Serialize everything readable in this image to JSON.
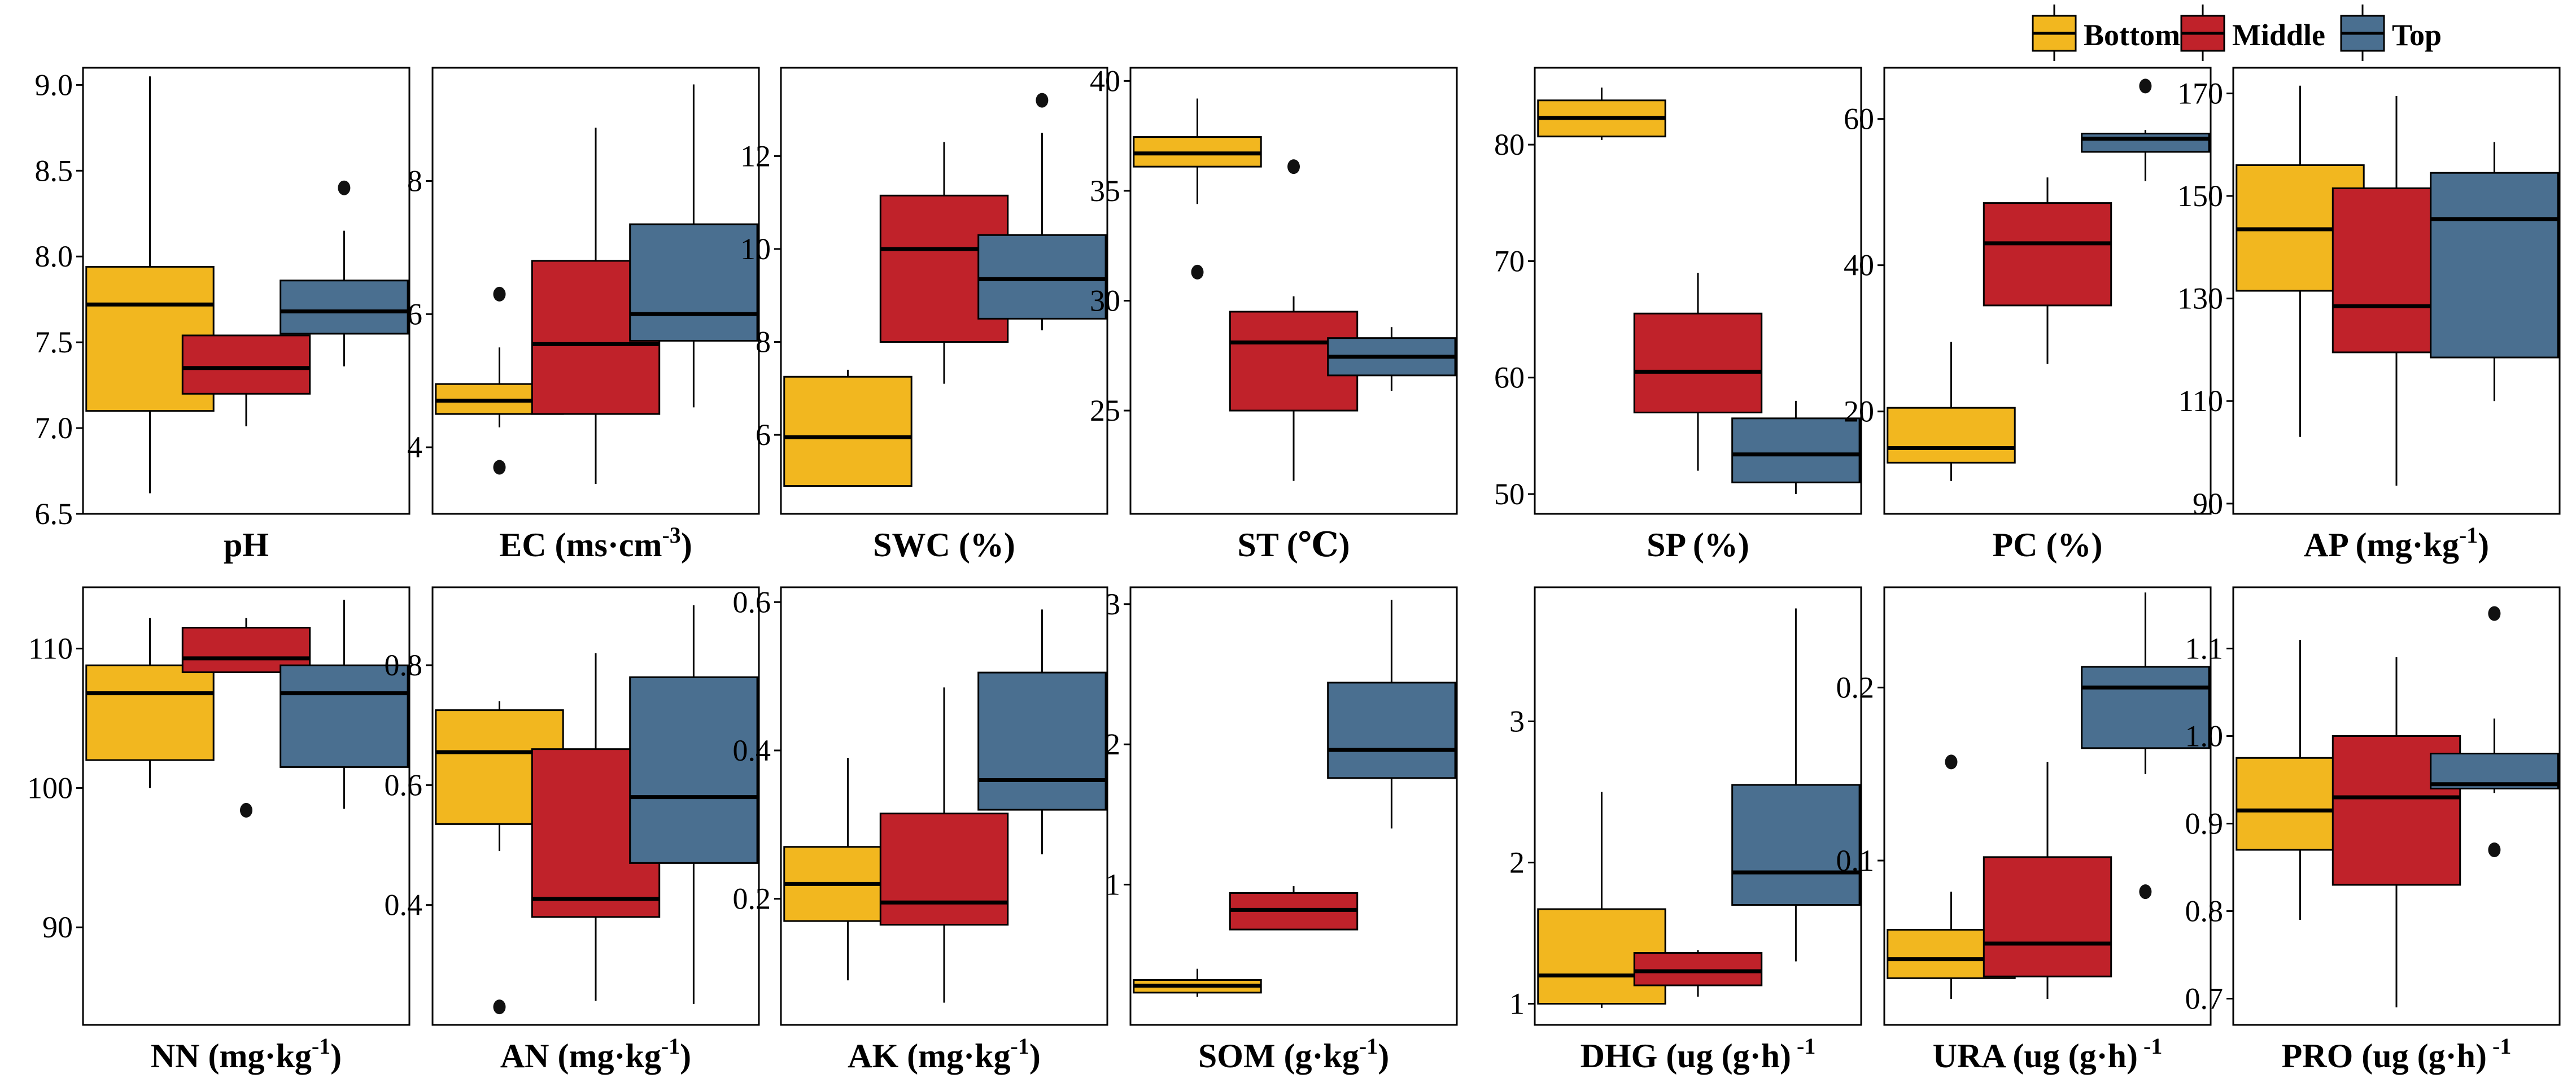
{
  "colors": {
    "Bottom": "#f2b71f",
    "Middle": "#c0222a",
    "Top": "#4a6f90"
  },
  "legend": [
    {
      "name": "Bottom",
      "label": "Bottom",
      "color": "#f2b71f"
    },
    {
      "name": "Middle",
      "label": "Middle",
      "color": "#c0222a"
    },
    {
      "name": "Top",
      "label": "Top",
      "color": "#4a6f90"
    }
  ],
  "chart_data": [
    {
      "id": "pH",
      "type": "box",
      "label": "pH",
      "ylim": [
        6.5,
        9.1
      ],
      "yticks": [
        6.5,
        7.0,
        7.5,
        8.0,
        8.5,
        9.0
      ],
      "yticklabels": [
        "6.5",
        "7.0",
        "7.5",
        "8.0",
        "8.5",
        "9.0"
      ],
      "series": [
        {
          "name": "Bottom",
          "whisker_low": 6.62,
          "q1": 7.1,
          "median": 7.72,
          "q3": 7.94,
          "whisker_high": 9.05,
          "outliers": []
        },
        {
          "name": "Middle",
          "whisker_low": 7.01,
          "q1": 7.2,
          "median": 7.35,
          "q3": 7.54,
          "whisker_high": 7.54,
          "outliers": []
        },
        {
          "name": "Top",
          "whisker_low": 7.36,
          "q1": 7.55,
          "median": 7.68,
          "q3": 7.86,
          "whisker_high": 8.15,
          "outliers": [
            8.4
          ]
        }
      ]
    },
    {
      "id": "EC",
      "type": "box",
      "label": "EC (ms·cm",
      "label_sup": "-3",
      "label_end": ")",
      "ylim": [
        3.0,
        9.7
      ],
      "yticks": [
        4,
        6,
        8
      ],
      "yticklabels": [
        "4",
        "6",
        "8"
      ],
      "series": [
        {
          "name": "Bottom",
          "whisker_low": 4.3,
          "q1": 4.5,
          "median": 4.7,
          "q3": 4.95,
          "whisker_high": 5.5,
          "outliers": [
            6.3,
            3.7
          ]
        },
        {
          "name": "Middle",
          "whisker_low": 3.45,
          "q1": 4.5,
          "median": 5.55,
          "q3": 6.8,
          "whisker_high": 8.8,
          "outliers": []
        },
        {
          "name": "Top",
          "whisker_low": 4.6,
          "q1": 5.6,
          "median": 6.0,
          "q3": 7.35,
          "whisker_high": 9.45,
          "outliers": []
        }
      ]
    },
    {
      "id": "SWC",
      "type": "box",
      "label": "SWC (%)",
      "ylim": [
        4.3,
        13.9
      ],
      "yticks": [
        6,
        8,
        10,
        12
      ],
      "yticklabels": [
        "6",
        "8",
        "10",
        "12"
      ],
      "series": [
        {
          "name": "Bottom",
          "whisker_low": 4.9,
          "q1": 4.9,
          "median": 5.95,
          "q3": 7.25,
          "whisker_high": 7.4,
          "outliers": []
        },
        {
          "name": "Middle",
          "whisker_low": 7.1,
          "q1": 8.0,
          "median": 10.0,
          "q3": 11.15,
          "whisker_high": 12.3,
          "outliers": []
        },
        {
          "name": "Top",
          "whisker_low": 8.25,
          "q1": 8.5,
          "median": 9.35,
          "q3": 10.3,
          "whisker_high": 12.5,
          "outliers": [
            13.2
          ]
        }
      ]
    },
    {
      "id": "ST",
      "type": "box",
      "label": "ST (℃)",
      "ylim": [
        20.3,
        40.6
      ],
      "yticks": [
        25,
        30,
        35,
        40
      ],
      "yticklabels": [
        "25",
        "30",
        "35",
        "40"
      ],
      "series": [
        {
          "name": "Bottom",
          "whisker_low": 34.4,
          "q1": 36.1,
          "median": 36.7,
          "q3": 37.45,
          "whisker_high": 39.2,
          "outliers": [
            31.3
          ]
        },
        {
          "name": "Middle",
          "whisker_low": 21.8,
          "q1": 25.0,
          "median": 28.1,
          "q3": 29.5,
          "whisker_high": 30.2,
          "outliers": [
            36.1
          ]
        },
        {
          "name": "Top",
          "whisker_low": 25.9,
          "q1": 26.6,
          "median": 27.45,
          "q3": 28.3,
          "whisker_high": 28.8,
          "outliers": []
        }
      ]
    },
    {
      "id": "SP",
      "type": "box",
      "label": "SP (%)",
      "ylim": [
        48.3,
        86.6
      ],
      "yticks": [
        50,
        60,
        70,
        80
      ],
      "yticklabels": [
        "50",
        "60",
        "70",
        "80"
      ],
      "series": [
        {
          "name": "Bottom",
          "whisker_low": 80.4,
          "q1": 80.7,
          "median": 82.3,
          "q3": 83.8,
          "whisker_high": 84.9,
          "outliers": []
        },
        {
          "name": "Middle",
          "whisker_low": 52.0,
          "q1": 57.0,
          "median": 60.5,
          "q3": 65.5,
          "whisker_high": 69.0,
          "outliers": []
        },
        {
          "name": "Top",
          "whisker_low": 50.0,
          "q1": 51.0,
          "median": 53.4,
          "q3": 56.5,
          "whisker_high": 58.0,
          "outliers": []
        }
      ]
    },
    {
      "id": "PC",
      "type": "box",
      "label": "PC (%)",
      "ylim": [
        6.0,
        67.0
      ],
      "yticks": [
        20,
        40,
        60
      ],
      "yticklabels": [
        "20",
        "40",
        "60"
      ],
      "series": [
        {
          "name": "Bottom",
          "whisker_low": 10.5,
          "q1": 13.0,
          "median": 15.0,
          "q3": 20.5,
          "whisker_high": 29.5,
          "outliers": []
        },
        {
          "name": "Middle",
          "whisker_low": 26.5,
          "q1": 34.5,
          "median": 43.0,
          "q3": 48.5,
          "whisker_high": 52.0,
          "outliers": []
        },
        {
          "name": "Top",
          "whisker_low": 51.5,
          "q1": 55.5,
          "median": 57.3,
          "q3": 58.0,
          "whisker_high": 58.5,
          "outliers": [
            64.5
          ]
        }
      ]
    },
    {
      "id": "AP",
      "type": "box",
      "label": "AP (mg·kg",
      "label_sup": "-1",
      "label_end": ")",
      "ylim": [
        88.0,
        175.0
      ],
      "yticks": [
        90,
        110,
        130,
        150,
        170
      ],
      "yticklabels": [
        "90",
        "110",
        "130",
        "150",
        "170"
      ],
      "series": [
        {
          "name": "Bottom",
          "whisker_low": 103.0,
          "q1": 131.5,
          "median": 143.5,
          "q3": 156.0,
          "whisker_high": 171.5,
          "outliers": []
        },
        {
          "name": "Middle",
          "whisker_low": 93.5,
          "q1": 119.5,
          "median": 128.5,
          "q3": 151.5,
          "whisker_high": 169.5,
          "outliers": []
        },
        {
          "name": "Top",
          "whisker_low": 110.0,
          "q1": 118.5,
          "median": 145.5,
          "q3": 154.5,
          "whisker_high": 160.5,
          "outliers": []
        }
      ]
    },
    {
      "id": "NN",
      "type": "box",
      "label": "NN (mg·kg",
      "label_sup": "-1",
      "label_end": ")",
      "ylim": [
        83.0,
        114.4
      ],
      "yticks": [
        90,
        100,
        110
      ],
      "yticklabels": [
        "90",
        "100",
        "110"
      ],
      "series": [
        {
          "name": "Bottom",
          "whisker_low": 100.0,
          "q1": 102.0,
          "median": 106.8,
          "q3": 108.8,
          "whisker_high": 112.2,
          "outliers": []
        },
        {
          "name": "Middle",
          "whisker_low": 108.3,
          "q1": 108.3,
          "median": 109.3,
          "q3": 111.5,
          "whisker_high": 112.2,
          "outliers": [
            98.4
          ]
        },
        {
          "name": "Top",
          "whisker_low": 98.5,
          "q1": 101.5,
          "median": 106.8,
          "q3": 108.8,
          "whisker_high": 113.5,
          "outliers": []
        }
      ]
    },
    {
      "id": "AN",
      "type": "box",
      "label": "AN (mg·kg",
      "label_sup": "-1",
      "label_end": ")",
      "ylim": [
        0.2,
        0.93
      ],
      "yticks": [
        0.4,
        0.6,
        0.8
      ],
      "yticklabels": [
        "0.4",
        "0.6",
        "0.8"
      ],
      "series": [
        {
          "name": "Bottom",
          "whisker_low": 0.49,
          "q1": 0.535,
          "median": 0.655,
          "q3": 0.725,
          "whisker_high": 0.74,
          "outliers": [
            0.23
          ]
        },
        {
          "name": "Middle",
          "whisker_low": 0.24,
          "q1": 0.38,
          "median": 0.41,
          "q3": 0.66,
          "whisker_high": 0.82,
          "outliers": []
        },
        {
          "name": "Top",
          "whisker_low": 0.235,
          "q1": 0.47,
          "median": 0.58,
          "q3": 0.78,
          "whisker_high": 0.9,
          "outliers": []
        }
      ]
    },
    {
      "id": "AK",
      "type": "box",
      "label": "AK (mg·kg",
      "label_sup": "-1",
      "label_end": ")",
      "ylim": [
        0.03,
        0.62
      ],
      "yticks": [
        0.2,
        0.4,
        0.6
      ],
      "yticklabels": [
        "0.2",
        "0.4",
        "0.6"
      ],
      "series": [
        {
          "name": "Bottom",
          "whisker_low": 0.09,
          "q1": 0.17,
          "median": 0.22,
          "q3": 0.27,
          "whisker_high": 0.39,
          "outliers": []
        },
        {
          "name": "Middle",
          "whisker_low": 0.06,
          "q1": 0.165,
          "median": 0.195,
          "q3": 0.315,
          "whisker_high": 0.485,
          "outliers": []
        },
        {
          "name": "Top",
          "whisker_low": 0.26,
          "q1": 0.32,
          "median": 0.36,
          "q3": 0.505,
          "whisker_high": 0.59,
          "outliers": []
        }
      ]
    },
    {
      "id": "SOM",
      "type": "box",
      "label": "SOM (g·kg",
      "label_sup": "-1",
      "label_end": ")",
      "ylim": [
        0.0,
        3.12
      ],
      "yticks": [
        1,
        2,
        3
      ],
      "yticklabels": [
        "1",
        "2",
        "3"
      ],
      "series": [
        {
          "name": "Bottom",
          "whisker_low": 0.2,
          "q1": 0.23,
          "median": 0.28,
          "q3": 0.32,
          "whisker_high": 0.4,
          "outliers": []
        },
        {
          "name": "Middle",
          "whisker_low": 0.68,
          "q1": 0.68,
          "median": 0.82,
          "q3": 0.94,
          "whisker_high": 0.99,
          "outliers": []
        },
        {
          "name": "Top",
          "whisker_low": 1.4,
          "q1": 1.76,
          "median": 1.96,
          "q3": 2.44,
          "whisker_high": 3.03,
          "outliers": []
        }
      ]
    },
    {
      "id": "DHG",
      "type": "box",
      "label": "DHG (ug (g·h)",
      "label_sup": " -1",
      "label_end": "",
      "ylim": [
        0.85,
        3.95
      ],
      "yticks": [
        1,
        2,
        3
      ],
      "yticklabels": [
        "1",
        "2",
        "3"
      ],
      "series": [
        {
          "name": "Bottom",
          "whisker_low": 0.97,
          "q1": 1.0,
          "median": 1.2,
          "q3": 1.67,
          "whisker_high": 2.5,
          "outliers": []
        },
        {
          "name": "Middle",
          "whisker_low": 1.05,
          "q1": 1.13,
          "median": 1.23,
          "q3": 1.36,
          "whisker_high": 1.38,
          "outliers": []
        },
        {
          "name": "Top",
          "whisker_low": 1.3,
          "q1": 1.7,
          "median": 1.93,
          "q3": 2.55,
          "whisker_high": 3.8,
          "outliers": []
        }
      ]
    },
    {
      "id": "URA",
      "type": "box",
      "label": "URA (ug (g·h)",
      "label_sup": " -1",
      "label_end": "",
      "ylim": [
        0.005,
        0.258
      ],
      "yticks": [
        0.1,
        0.2
      ],
      "yticklabels": [
        "0.1",
        "0.2"
      ],
      "series": [
        {
          "name": "Bottom",
          "whisker_low": 0.02,
          "q1": 0.032,
          "median": 0.043,
          "q3": 0.06,
          "whisker_high": 0.082,
          "outliers": [
            0.157
          ]
        },
        {
          "name": "Middle",
          "whisker_low": 0.02,
          "q1": 0.033,
          "median": 0.052,
          "q3": 0.102,
          "whisker_high": 0.157,
          "outliers": []
        },
        {
          "name": "Top",
          "whisker_low": 0.15,
          "q1": 0.165,
          "median": 0.2,
          "q3": 0.212,
          "whisker_high": 0.255,
          "outliers": [
            0.082
          ]
        }
      ]
    },
    {
      "id": "PRO",
      "type": "box",
      "label": "PRO (ug (g·h)",
      "label_sup": " -1",
      "label_end": "",
      "ylim": [
        0.67,
        1.17
      ],
      "yticks": [
        0.7,
        0.8,
        0.9,
        1.0,
        1.1
      ],
      "yticklabels": [
        "0.7",
        "0.8",
        "0.9",
        "1.0",
        "1.1"
      ],
      "series": [
        {
          "name": "Bottom",
          "whisker_low": 0.79,
          "q1": 0.87,
          "median": 0.915,
          "q3": 0.975,
          "whisker_high": 1.11,
          "outliers": []
        },
        {
          "name": "Middle",
          "whisker_low": 0.69,
          "q1": 0.83,
          "median": 0.93,
          "q3": 1.0,
          "whisker_high": 1.09,
          "outliers": []
        },
        {
          "name": "Top",
          "whisker_low": 0.935,
          "q1": 0.94,
          "median": 0.945,
          "q3": 0.98,
          "whisker_high": 1.02,
          "outliers": [
            1.14,
            0.87
          ]
        }
      ]
    }
  ]
}
